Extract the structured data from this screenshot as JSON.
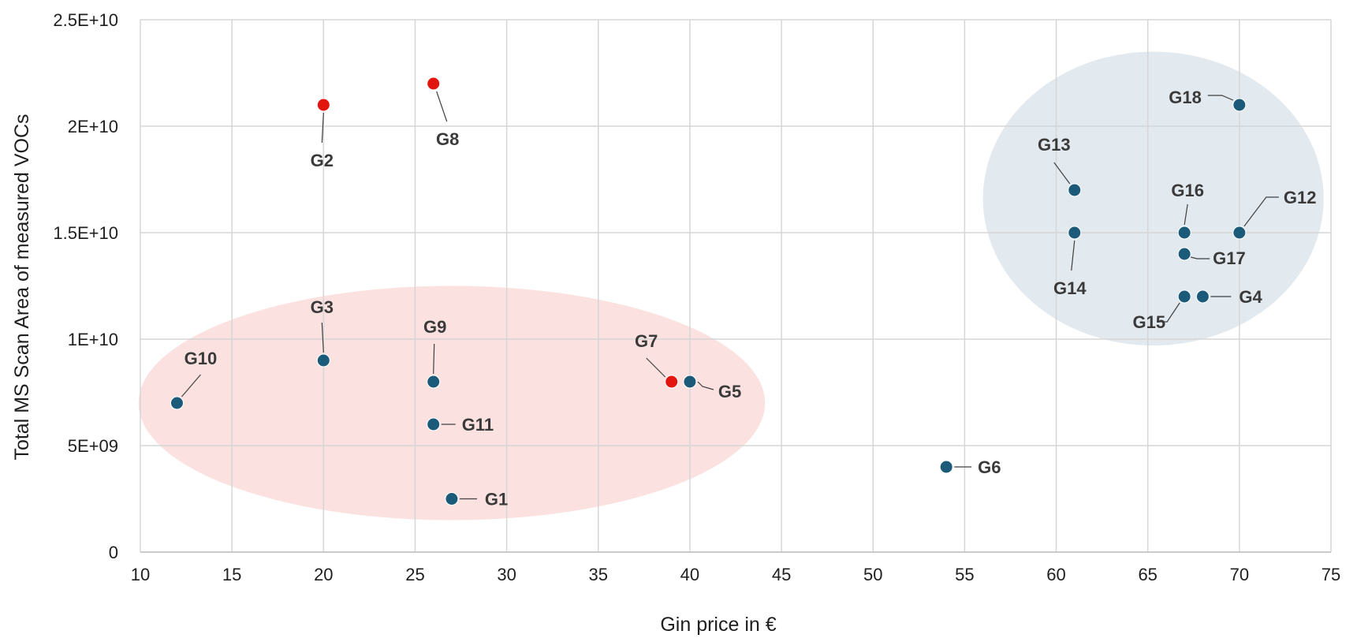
{
  "chart_data": {
    "type": "scatter",
    "title": "",
    "xlabel": "Gin price in €",
    "ylabel": "Total MS Scan Area of measured VOCs",
    "xlim": [
      10,
      75
    ],
    "ylim": [
      0,
      25000000000
    ],
    "grid": true,
    "x_ticks": [
      "10",
      "15",
      "20",
      "25",
      "30",
      "35",
      "40",
      "45",
      "50",
      "55",
      "60",
      "65",
      "70",
      "75"
    ],
    "y_ticks": [
      "0",
      "5E+09",
      "1E+10",
      "1.5E+10",
      "2E+10",
      "2.5E+10"
    ],
    "colors": {
      "blue": "#1b5a78",
      "red": "#e3160f",
      "pink_region": "#f7c9c6",
      "blue_region": "#cbd7e2"
    },
    "regions": [
      {
        "name": "low-price-cluster",
        "center_x": 27,
        "center_y": 7000000000,
        "radius_x": 17.1,
        "radius_y": 5500000000,
        "color": "pink_region"
      },
      {
        "name": "high-price-cluster",
        "center_x": 65.3,
        "center_y": 16600000000,
        "radius_x": 9.3,
        "radius_y": 6900000000,
        "color": "blue_region"
      }
    ],
    "points": [
      {
        "label": "G1",
        "x": 27,
        "y": 2500000000,
        "color": "blue"
      },
      {
        "label": "G2",
        "x": 20,
        "y": 21000000000,
        "color": "red"
      },
      {
        "label": "G3",
        "x": 20,
        "y": 9000000000,
        "color": "blue"
      },
      {
        "label": "G4",
        "x": 68,
        "y": 12000000000,
        "color": "blue"
      },
      {
        "label": "G5",
        "x": 40,
        "y": 8000000000,
        "color": "blue"
      },
      {
        "label": "G6",
        "x": 54,
        "y": 4000000000,
        "color": "blue"
      },
      {
        "label": "G7",
        "x": 39,
        "y": 8000000000,
        "color": "red"
      },
      {
        "label": "G8",
        "x": 26,
        "y": 22000000000,
        "color": "red"
      },
      {
        "label": "G9",
        "x": 26,
        "y": 8000000000,
        "color": "blue"
      },
      {
        "label": "G10",
        "x": 12,
        "y": 7000000000,
        "color": "blue"
      },
      {
        "label": "G11",
        "x": 26,
        "y": 6000000000,
        "color": "blue"
      },
      {
        "label": "G12",
        "x": 70,
        "y": 15000000000,
        "color": "blue"
      },
      {
        "label": "G13",
        "x": 61,
        "y": 17000000000,
        "color": "blue"
      },
      {
        "label": "G14",
        "x": 61,
        "y": 15000000000,
        "color": "blue"
      },
      {
        "label": "G15",
        "x": 67,
        "y": 12000000000,
        "color": "blue"
      },
      {
        "label": "G16",
        "x": 67,
        "y": 15000000000,
        "color": "blue"
      },
      {
        "label": "G17",
        "x": 67,
        "y": 14000000000,
        "color": "blue"
      },
      {
        "label": "G18",
        "x": 70,
        "y": 21000000000,
        "color": "blue"
      }
    ]
  }
}
